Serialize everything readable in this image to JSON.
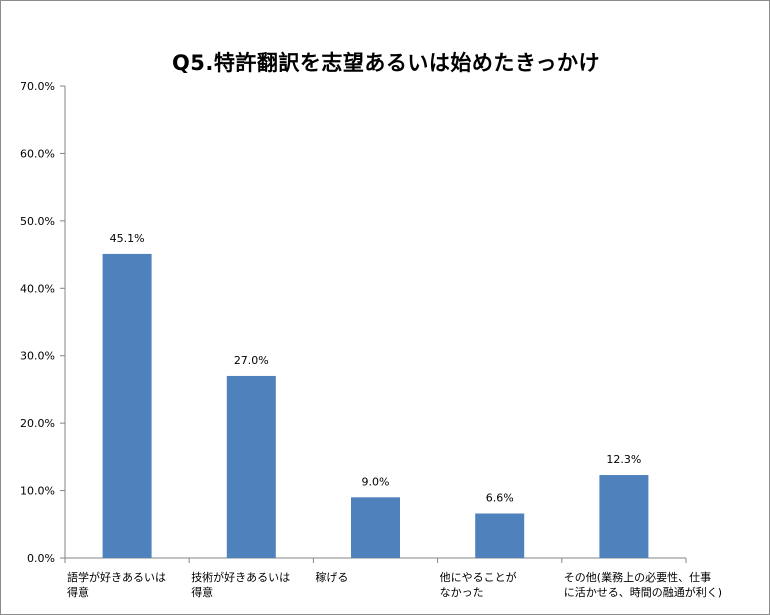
{
  "chart_data": {
    "type": "bar",
    "title": "Q5.特許翻訳を志望あるいは始めたきっかけ",
    "xlabel": "",
    "ylabel": "",
    "ylim": [
      0,
      70
    ],
    "y_ticks": [
      "0.0%",
      "10.0%",
      "20.0%",
      "30.0%",
      "40.0%",
      "50.0%",
      "60.0%",
      "70.0%"
    ],
    "grid": false,
    "legend": "none",
    "bar_color": "#4f81bd",
    "categories": [
      [
        "語学が好きあるいは",
        "得意"
      ],
      [
        "技術が好きあるいは",
        "得意"
      ],
      [
        "稼げる"
      ],
      [
        "他にやることが",
        "なかった"
      ],
      [
        "その他(業務上の必要性、仕事",
        "に活かせる、時間の融通が利く)"
      ]
    ],
    "values": [
      45.1,
      27.0,
      9.0,
      6.6,
      12.3
    ],
    "data_labels": [
      "45.1%",
      "27.0%",
      "9.0%",
      "6.6%",
      "12.3%"
    ]
  }
}
